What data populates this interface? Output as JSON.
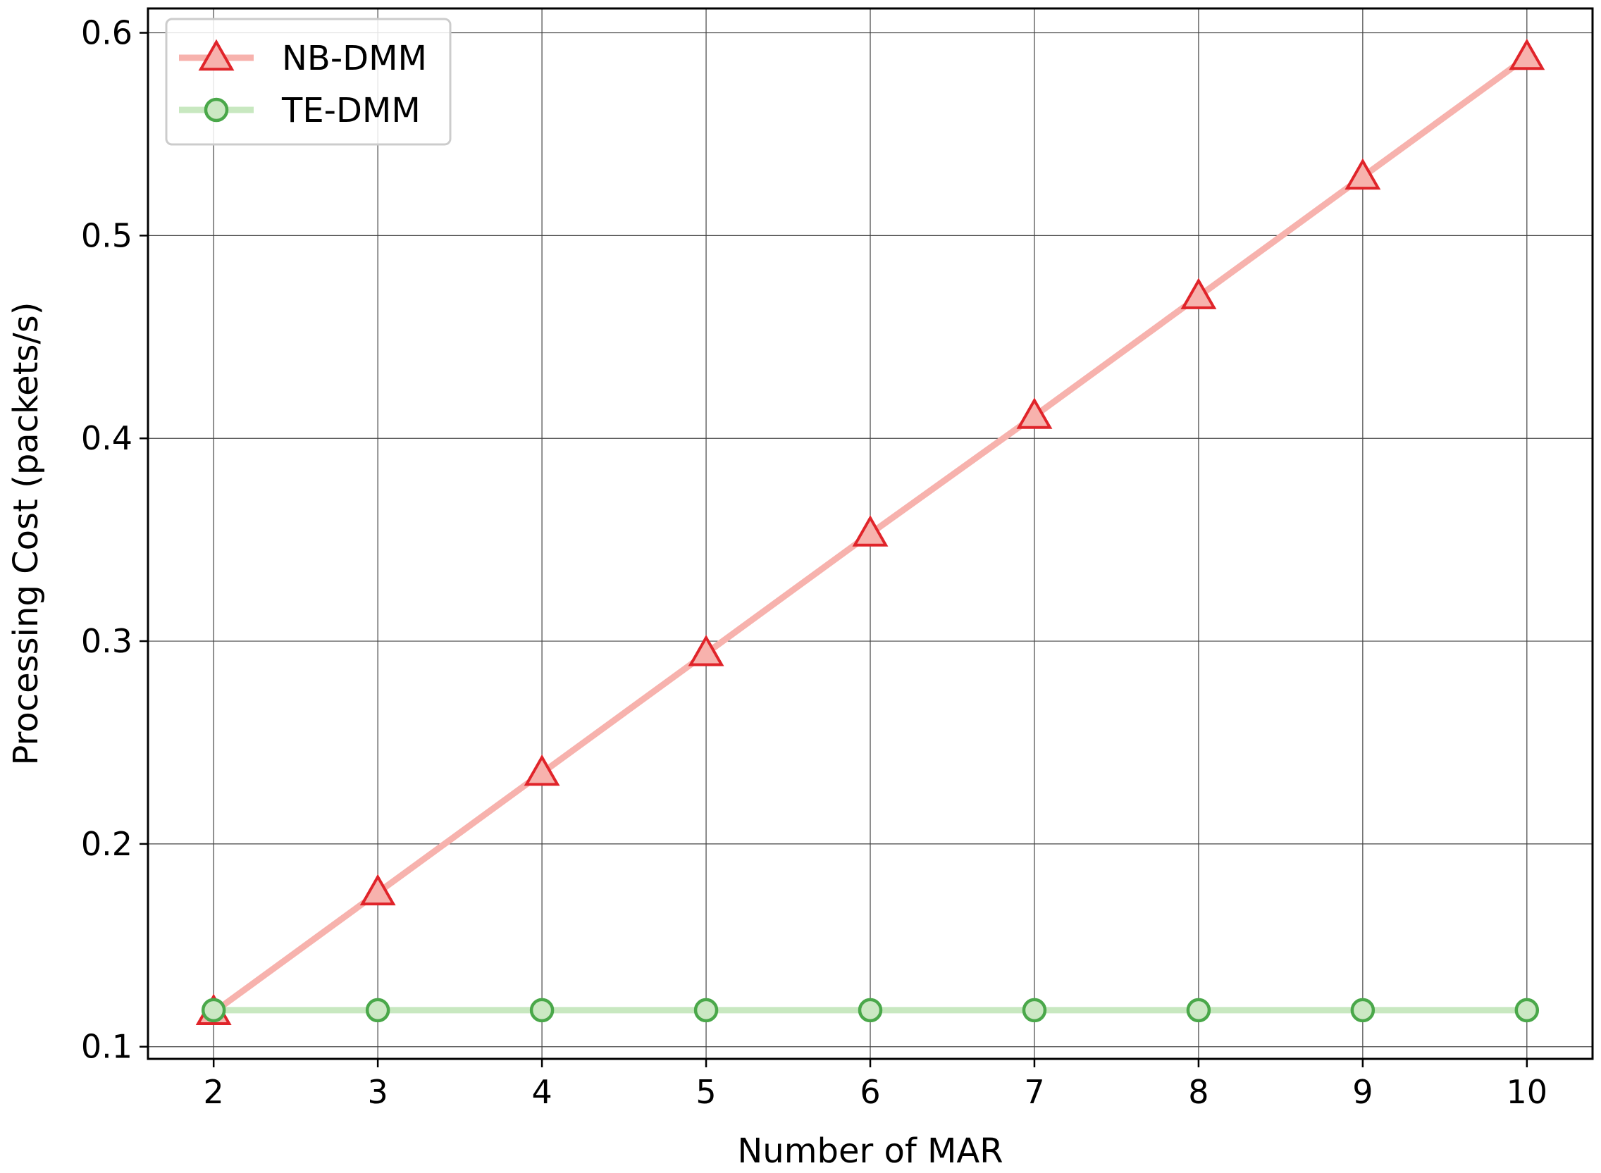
{
  "chart_data": {
    "type": "line",
    "xlabel": "Number of MAR",
    "ylabel": "Processing Cost (packets/s)",
    "x": [
      2,
      3,
      4,
      5,
      6,
      7,
      8,
      9,
      10
    ],
    "xlim": [
      1.6,
      10.4
    ],
    "ylim": [
      0.094,
      0.612
    ],
    "xticks": [
      2,
      3,
      4,
      5,
      6,
      7,
      8,
      9,
      10
    ],
    "yticks": [
      0.1,
      0.2,
      0.3,
      0.4,
      0.5,
      0.6
    ],
    "ytick_labels": [
      "0.1",
      "0.2",
      "0.3",
      "0.4",
      "0.5",
      "0.6"
    ],
    "grid": true,
    "legend_position": "top-left",
    "series": [
      {
        "name": "NB-DMM",
        "marker": "triangle",
        "line_color": "#f7b2ad",
        "marker_edge": "#e0242a",
        "marker_fill": "#f7b2ad",
        "values": [
          0.117,
          0.176,
          0.235,
          0.294,
          0.353,
          0.411,
          0.47,
          0.529,
          0.588
        ]
      },
      {
        "name": "TE-DMM",
        "marker": "circle",
        "line_color": "#c8e8c0",
        "marker_edge": "#4aa84a",
        "marker_fill": "#cbe8c3",
        "values": [
          0.118,
          0.118,
          0.118,
          0.118,
          0.118,
          0.118,
          0.118,
          0.118,
          0.118
        ]
      }
    ]
  }
}
